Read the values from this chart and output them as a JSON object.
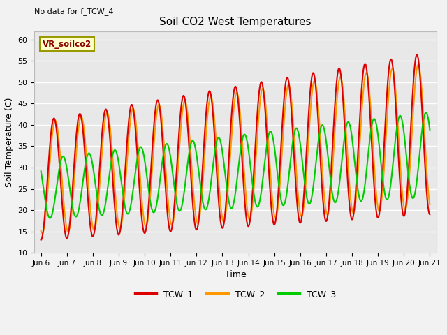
{
  "title": "Soil CO2 West Temperatures",
  "xlabel": "Time",
  "ylabel": "Soil Temperature (C)",
  "no_data_text": "No data for f_TCW_4",
  "annotation_text": "VR_soilco2",
  "xlim_start": 5.75,
  "xlim_end": 21.25,
  "ylim_bottom": 10,
  "ylim_top": 62,
  "yticks": [
    10,
    15,
    20,
    25,
    30,
    35,
    40,
    45,
    50,
    55,
    60
  ],
  "xtick_labels": [
    "Jun 6",
    "Jun 7",
    "Jun 8",
    "Jun 9",
    "Jun 10",
    "Jun 11",
    "Jun 12",
    "Jun 13",
    "Jun 14",
    "Jun 15",
    "Jun 16",
    "Jun 17",
    "Jun 18",
    "Jun 19",
    "Jun 20",
    "Jun 21"
  ],
  "xtick_positions": [
    6,
    7,
    8,
    9,
    10,
    11,
    12,
    13,
    14,
    15,
    16,
    17,
    18,
    19,
    20,
    21
  ],
  "color_TCW1": "#dd0000",
  "color_TCW2": "#ff9900",
  "color_TCW3": "#00cc00",
  "bg_color": "#e8e8e8",
  "fig_bg_color": "#f2f2f2",
  "linewidth": 1.5
}
